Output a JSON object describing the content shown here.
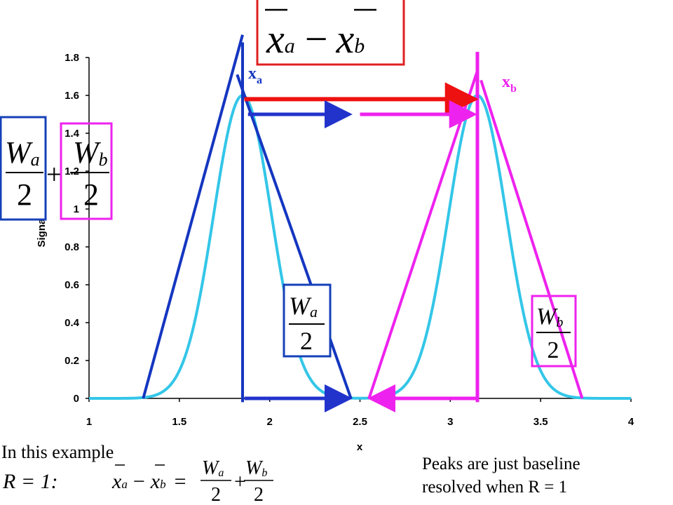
{
  "chart_data": {
    "type": "line",
    "title": "",
    "xlabel": "x",
    "ylabel": "Signal",
    "xlim": [
      1,
      4
    ],
    "ylim": [
      0,
      1.8
    ],
    "x_ticks": [
      "1",
      "1.5",
      "2",
      "2.5",
      "3",
      "3.5",
      "4"
    ],
    "x_tick_values": [
      1,
      1.5,
      2,
      2.5,
      3,
      3.5,
      4
    ],
    "y_ticks": [
      "0",
      "0.2",
      "0.4",
      "0.6",
      "0.8",
      "1",
      "1.2",
      "1.4",
      "1.6",
      "1.8"
    ],
    "y_tick_values": [
      0,
      0.2,
      0.4,
      0.6,
      0.8,
      1,
      1.2,
      1.4,
      1.6,
      1.8
    ],
    "grid": false,
    "series": [
      {
        "color": "#33c6e8",
        "peaks": [
          {
            "center": 1.85,
            "height": 1.6,
            "sigma": 0.16
          },
          {
            "center": 3.15,
            "height": 1.6,
            "sigma": 0.16
          }
        ]
      }
    ],
    "annotations": {
      "peak_a_label": {
        "main": "x",
        "sub": "a",
        "color": "#1536c0"
      },
      "peak_b_label": {
        "main": "x",
        "sub": "b",
        "color": "#ee22ee"
      },
      "tangent_a_left": {
        "x": [
          1.3,
          1.85
        ],
        "y": [
          0,
          1.92
        ],
        "color": "#1536c0"
      },
      "tangent_a_right": {
        "x": [
          1.82,
          2.45
        ],
        "y": [
          1.71,
          0
        ],
        "color": "#1536c0"
      },
      "tangent_b_left": {
        "x": [
          2.55,
          3.15
        ],
        "y": [
          0,
          1.73
        ],
        "color": "#ee22ee"
      },
      "tangent_b_right": {
        "x": [
          3.17,
          3.73
        ],
        "y": [
          1.68,
          0
        ],
        "color": "#ee22ee"
      },
      "center_line_a": {
        "x": 1.85,
        "y": [
          -0.02,
          1.88
        ],
        "color": "#1536c0"
      },
      "center_line_b": {
        "x": 3.15,
        "y": [
          -0.02,
          1.83
        ],
        "color": "#ee22ee"
      },
      "separation_arrow": {
        "x": [
          1.86,
          3.14
        ],
        "y": 1.58,
        "color": "#ee1111"
      },
      "half_width_arrow_a_top": {
        "x": [
          1.88,
          2.45
        ],
        "y": 1.5,
        "color": "#2233cc"
      },
      "half_width_arrow_b_top": {
        "x": [
          2.5,
          3.14
        ],
        "y": 1.5,
        "color": "#ee22ee"
      },
      "half_width_arrow_a_bottom": {
        "x": [
          1.86,
          2.45
        ],
        "y": 0,
        "color": "#2233cc"
      },
      "half_width_arrow_b_bottom": {
        "x": [
          3.15,
          2.55
        ],
        "y": 0,
        "color": "#ee22ee"
      }
    }
  },
  "formulas": {
    "top": {
      "a_var": "x",
      "a_sub": "a",
      "op": "−",
      "b_var": "x",
      "b_sub": "b",
      "border": "#e02020"
    },
    "left_a": {
      "num": "W",
      "sub": "a",
      "den": "2",
      "border": "#1540b8"
    },
    "left_plus": "+",
    "left_b": {
      "num": "W",
      "sub": "b",
      "den": "2",
      "border": "#ee22ee"
    },
    "mid_a": {
      "num": "W",
      "sub": "a",
      "den": "2",
      "border": "#1540b8"
    },
    "mid_b": {
      "num": "W",
      "sub": "b",
      "den": "2",
      "border": "#ee22ee"
    },
    "bottom": {
      "r_expr": "R = 1:",
      "xa": "x",
      "xa_sub": "a",
      "minus": "−",
      "xb": "x",
      "xb_sub": "b",
      "equals": "=",
      "wa": "W",
      "wa_sub": "a",
      "plus": "+",
      "wb": "W",
      "wb_sub": "b",
      "den": "2"
    }
  },
  "notes": {
    "left": "In this example",
    "right_line1": "Peaks are just baseline",
    "right_line2": "resolved when R = 1"
  }
}
